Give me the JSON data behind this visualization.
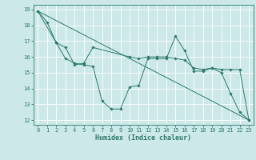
{
  "xlabel": "Humidex (Indice chaleur)",
  "xlim": [
    -0.5,
    23.5
  ],
  "ylim": [
    11.7,
    19.3
  ],
  "yticks": [
    12,
    13,
    14,
    15,
    16,
    17,
    18,
    19
  ],
  "xticks": [
    0,
    1,
    2,
    3,
    4,
    5,
    6,
    7,
    8,
    9,
    10,
    11,
    12,
    13,
    14,
    15,
    16,
    17,
    18,
    19,
    20,
    21,
    22,
    23
  ],
  "bg_color": "#cde8e8",
  "grid_color": "#ffffff",
  "line_color": "#2a7a6a",
  "line1_x": [
    0,
    1,
    2,
    3,
    4,
    5,
    6,
    7,
    8,
    9,
    10,
    11,
    12,
    13,
    14,
    15,
    16,
    17,
    18,
    19,
    20,
    21,
    22,
    23
  ],
  "line1_y": [
    18.9,
    18.2,
    16.9,
    15.9,
    15.6,
    15.5,
    15.4,
    13.2,
    12.7,
    12.7,
    14.1,
    14.2,
    15.9,
    15.9,
    15.9,
    17.3,
    16.4,
    15.1,
    15.1,
    15.3,
    15.0,
    13.7,
    12.5,
    12.0
  ],
  "line2_x": [
    0,
    2,
    3,
    4,
    5,
    6,
    10,
    11,
    12,
    13,
    14,
    15,
    16,
    17,
    18,
    19,
    20,
    21,
    22,
    23
  ],
  "line2_y": [
    18.9,
    16.9,
    16.6,
    15.5,
    15.6,
    16.6,
    16.0,
    15.9,
    16.0,
    16.0,
    16.0,
    15.9,
    15.8,
    15.3,
    15.2,
    15.3,
    15.2,
    15.2,
    15.2,
    12.0
  ],
  "line3_x": [
    0,
    23
  ],
  "line3_y": [
    18.9,
    12.0
  ]
}
